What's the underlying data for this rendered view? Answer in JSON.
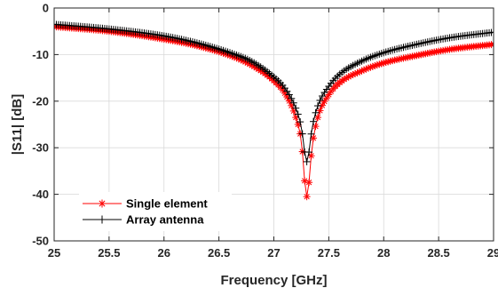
{
  "chart_data": {
    "type": "line",
    "xlabel": "Frequency [GHz]",
    "ylabel": "|S11| [dB]",
    "xlim": [
      25,
      29
    ],
    "ylim": [
      -50,
      0
    ],
    "xticks": [
      "25",
      "25.5",
      "26",
      "26.5",
      "27",
      "27.5",
      "28",
      "28.5",
      "29"
    ],
    "yticks": [
      "0",
      "-10",
      "-20",
      "-30",
      "-40",
      "-50"
    ],
    "grid": true,
    "legend_position": "bottom-left",
    "series": [
      {
        "name": "Single element",
        "color": "#ff0000",
        "marker": "asterisk",
        "x": [
          25.0,
          25.5,
          26.0,
          26.3,
          26.6,
          26.8,
          27.0,
          27.1,
          27.2,
          27.25,
          27.3,
          27.35,
          27.4,
          27.5,
          27.6,
          27.8,
          28.0,
          28.3,
          28.6,
          29.0
        ],
        "y": [
          -4.0,
          -5.0,
          -6.7,
          -8.1,
          -10.2,
          -12.3,
          -15.6,
          -18.3,
          -23.5,
          -28.5,
          -40.5,
          -29.5,
          -23.5,
          -18.6,
          -16.0,
          -13.5,
          -11.8,
          -10.2,
          -8.9,
          -7.8
        ]
      },
      {
        "name": "Array antenna",
        "color": "#000000",
        "marker": "plus",
        "x": [
          25.0,
          25.5,
          26.0,
          26.3,
          26.6,
          26.8,
          27.0,
          27.1,
          27.2,
          27.25,
          27.3,
          27.35,
          27.4,
          27.5,
          27.6,
          27.8,
          28.0,
          28.3,
          28.6,
          29.0
        ],
        "y": [
          -3.5,
          -4.5,
          -6.0,
          -7.5,
          -9.6,
          -11.5,
          -14.8,
          -17.2,
          -21.5,
          -25.5,
          -33.0,
          -25.5,
          -21.0,
          -16.8,
          -14.2,
          -11.4,
          -9.6,
          -7.8,
          -6.4,
          -5.2
        ]
      }
    ]
  }
}
